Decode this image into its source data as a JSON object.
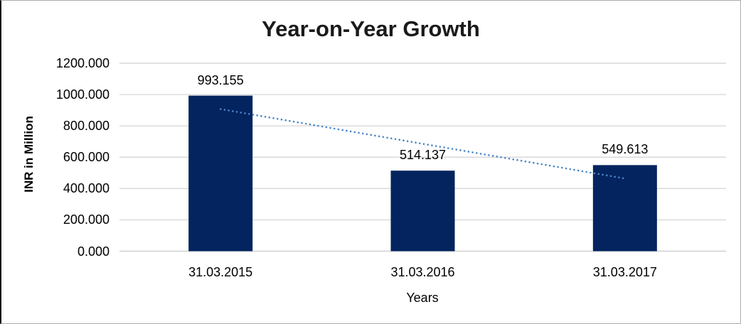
{
  "chart_data": {
    "type": "bar",
    "title": "Year-on-Year Growth",
    "xlabel": "Years",
    "ylabel": "INR in Million",
    "categories": [
      "31.03.2015",
      "31.03.2016",
      "31.03.2017"
    ],
    "values": [
      993.155,
      514.137,
      549.613
    ],
    "data_labels": [
      "993.155",
      "514.137",
      "549.613"
    ],
    "yticks": [
      {
        "value": 0,
        "label": "0.000"
      },
      {
        "value": 200,
        "label": "200.000"
      },
      {
        "value": 400,
        "label": "400.000"
      },
      {
        "value": 600,
        "label": "600.000"
      },
      {
        "value": 800,
        "label": "800.000"
      },
      {
        "value": 1000,
        "label": "1000.000"
      },
      {
        "value": 1200,
        "label": "1200.000"
      }
    ],
    "ylim": [
      0,
      1200
    ],
    "grid": true,
    "legend": "none",
    "trendline": {
      "type": "linear",
      "style": "dotted"
    },
    "colors": {
      "bar": "#03245e",
      "trendline": "#4a86c8",
      "gridline": "#d9d9d9",
      "zero_line": "#d0d0d0",
      "title_text": "#1a1a1a",
      "label_text": "#000000",
      "background": "#ffffff"
    }
  }
}
